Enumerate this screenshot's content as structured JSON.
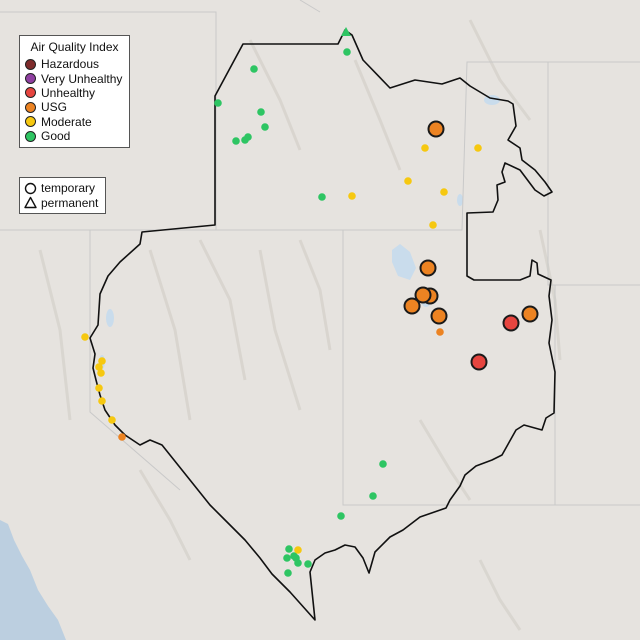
{
  "legend": {
    "title": "Air Quality Index",
    "categories": [
      {
        "label": "Hazardous",
        "color": "#7e2b2b"
      },
      {
        "label": "Very Unhealthy",
        "color": "#8f3fa1"
      },
      {
        "label": "Unhealthy",
        "color": "#e6453f"
      },
      {
        "label": "USG",
        "color": "#ec8322"
      },
      {
        "label": "Moderate",
        "color": "#f6c810"
      },
      {
        "label": "Good",
        "color": "#2ec563"
      }
    ],
    "monitor_types": [
      {
        "label": "temporary",
        "icon": "circle-icon"
      },
      {
        "label": "permanent",
        "icon": "triangle-icon"
      }
    ]
  },
  "map_colors": {
    "land": "#e6e3df",
    "ocean": "#bccfe0",
    "water": "#c9dcec",
    "state_border": "#c9c9c9",
    "region_border": "#111111"
  }
}
